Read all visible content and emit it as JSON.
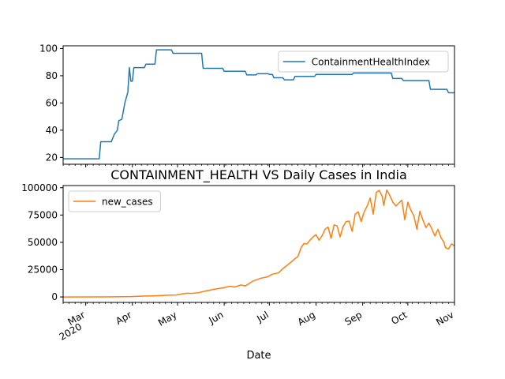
{
  "figure": {
    "xlabel": "Date",
    "x_tick_labels": [
      {
        "date": "2020-03-01",
        "label": "Mar",
        "sub": "2020"
      },
      {
        "date": "2020-04-01",
        "label": "Apr",
        "sub": ""
      },
      {
        "date": "2020-05-01",
        "label": "May",
        "sub": ""
      },
      {
        "date": "2020-06-01",
        "label": "Jun",
        "sub": ""
      },
      {
        "date": "2020-07-01",
        "label": "Jul",
        "sub": ""
      },
      {
        "date": "2020-08-01",
        "label": "Aug",
        "sub": ""
      },
      {
        "date": "2020-09-01",
        "label": "Sep",
        "sub": ""
      },
      {
        "date": "2020-10-01",
        "label": "Oct",
        "sub": ""
      },
      {
        "date": "2020-11-01",
        "label": "Nov",
        "sub": ""
      }
    ],
    "xlim": [
      "2020-02-15",
      "2020-11-01"
    ]
  },
  "chart_data": [
    {
      "type": "line",
      "title": "",
      "xlabel": "",
      "ylabel": "",
      "ylim": [
        15,
        102
      ],
      "yticks": [
        20,
        40,
        60,
        80,
        100
      ],
      "legend": "top-right",
      "series": [
        {
          "name": "ContainmentHealthIndex",
          "color": "#1f77b4",
          "points": [
            [
              "2020-02-15",
              19
            ],
            [
              "2020-03-10",
              19
            ],
            [
              "2020-03-11",
              31.5
            ],
            [
              "2020-03-18",
              31.5
            ],
            [
              "2020-03-20",
              37
            ],
            [
              "2020-03-22",
              40
            ],
            [
              "2020-03-23",
              47
            ],
            [
              "2020-03-25",
              48
            ],
            [
              "2020-03-27",
              60
            ],
            [
              "2020-03-29",
              68
            ],
            [
              "2020-03-30",
              86
            ],
            [
              "2020-03-31",
              76
            ],
            [
              "2020-04-01",
              76
            ],
            [
              "2020-04-02",
              86
            ],
            [
              "2020-04-09",
              86
            ],
            [
              "2020-04-10",
              88.5
            ],
            [
              "2020-04-16",
              88.5
            ],
            [
              "2020-04-17",
              99
            ],
            [
              "2020-04-27",
              99
            ],
            [
              "2020-04-28",
              96.5
            ],
            [
              "2020-05-17",
              96.5
            ],
            [
              "2020-05-18",
              85.5
            ],
            [
              "2020-05-31",
              85.5
            ],
            [
              "2020-06-01",
              83.3
            ],
            [
              "2020-06-15",
              83.3
            ],
            [
              "2020-06-16",
              80.6
            ],
            [
              "2020-06-22",
              80.6
            ],
            [
              "2020-06-23",
              81.5
            ],
            [
              "2020-06-30",
              81.5
            ],
            [
              "2020-07-01",
              81
            ],
            [
              "2020-07-03",
              81
            ],
            [
              "2020-07-04",
              78.5
            ],
            [
              "2020-07-10",
              78.5
            ],
            [
              "2020-07-11",
              77
            ],
            [
              "2020-07-17",
              77
            ],
            [
              "2020-07-18",
              79.5
            ],
            [
              "2020-07-31",
              79.5
            ],
            [
              "2020-08-01",
              81
            ],
            [
              "2020-08-25",
              81
            ],
            [
              "2020-08-26",
              82
            ],
            [
              "2020-09-20",
              82
            ],
            [
              "2020-09-21",
              78
            ],
            [
              "2020-09-27",
              78
            ],
            [
              "2020-09-28",
              76.5
            ],
            [
              "2020-10-15",
              76.5
            ],
            [
              "2020-10-16",
              70
            ],
            [
              "2020-10-27",
              70
            ],
            [
              "2020-10-28",
              67.5
            ],
            [
              "2020-11-01",
              67.5
            ]
          ]
        }
      ]
    },
    {
      "type": "line",
      "title": "CONTAINMENT_HEALTH VS Daily Cases in India",
      "xlabel": "Date",
      "ylabel": "",
      "ylim": [
        -5000,
        102000
      ],
      "yticks": [
        0,
        25000,
        50000,
        75000,
        100000
      ],
      "legend": "top-left",
      "series": [
        {
          "name": "new_cases",
          "color": "#ff7f0e",
          "points": [
            [
              "2020-02-15",
              0
            ],
            [
              "2020-03-15",
              50
            ],
            [
              "2020-03-31",
              300
            ],
            [
              "2020-04-05",
              600
            ],
            [
              "2020-04-10",
              850
            ],
            [
              "2020-04-15",
              1000
            ],
            [
              "2020-04-20",
              1300
            ],
            [
              "2020-04-25",
              1600
            ],
            [
              "2020-04-30",
              1800
            ],
            [
              "2020-05-03",
              2500
            ],
            [
              "2020-05-07",
              3400
            ],
            [
              "2020-05-10",
              3200
            ],
            [
              "2020-05-15",
              3900
            ],
            [
              "2020-05-20",
              5600
            ],
            [
              "2020-05-25",
              6900
            ],
            [
              "2020-05-31",
              8300
            ],
            [
              "2020-06-05",
              9800
            ],
            [
              "2020-06-08",
              9000
            ],
            [
              "2020-06-12",
              11000
            ],
            [
              "2020-06-15",
              10000
            ],
            [
              "2020-06-20",
              14500
            ],
            [
              "2020-06-25",
              17000
            ],
            [
              "2020-06-30",
              18500
            ],
            [
              "2020-07-03",
              20900
            ],
            [
              "2020-07-07",
              22000
            ],
            [
              "2020-07-10",
              26000
            ],
            [
              "2020-07-12",
              28000
            ],
            [
              "2020-07-16",
              32600
            ],
            [
              "2020-07-18",
              35000
            ],
            [
              "2020-07-20",
              37000
            ],
            [
              "2020-07-22",
              45000
            ],
            [
              "2020-07-24",
              49000
            ],
            [
              "2020-07-26",
              48500
            ],
            [
              "2020-07-28",
              52000
            ],
            [
              "2020-07-30",
              55000
            ],
            [
              "2020-08-01",
              57000
            ],
            [
              "2020-08-03",
              52000
            ],
            [
              "2020-08-05",
              56000
            ],
            [
              "2020-08-07",
              62000
            ],
            [
              "2020-08-09",
              64000
            ],
            [
              "2020-08-11",
              53600
            ],
            [
              "2020-08-13",
              66000
            ],
            [
              "2020-08-15",
              65000
            ],
            [
              "2020-08-17",
              55000
            ],
            [
              "2020-08-19",
              64500
            ],
            [
              "2020-08-21",
              69000
            ],
            [
              "2020-08-23",
              69500
            ],
            [
              "2020-08-25",
              60000
            ],
            [
              "2020-08-27",
              75800
            ],
            [
              "2020-08-29",
              78000
            ],
            [
              "2020-08-31",
              69000
            ],
            [
              "2020-09-02",
              78000
            ],
            [
              "2020-09-04",
              83300
            ],
            [
              "2020-09-06",
              90600
            ],
            [
              "2020-09-08",
              75800
            ],
            [
              "2020-09-10",
              95700
            ],
            [
              "2020-09-12",
              97600
            ],
            [
              "2020-09-14",
              92000
            ],
            [
              "2020-09-15",
              83800
            ],
            [
              "2020-09-17",
              97900
            ],
            [
              "2020-09-19",
              93000
            ],
            [
              "2020-09-21",
              86900
            ],
            [
              "2020-09-23",
              83300
            ],
            [
              "2020-09-25",
              86000
            ],
            [
              "2020-09-27",
              88600
            ],
            [
              "2020-09-29",
              70600
            ],
            [
              "2020-10-01",
              86800
            ],
            [
              "2020-10-03",
              79500
            ],
            [
              "2020-10-05",
              74400
            ],
            [
              "2020-10-07",
              62000
            ],
            [
              "2020-10-09",
              78500
            ],
            [
              "2020-10-11",
              70500
            ],
            [
              "2020-10-13",
              63500
            ],
            [
              "2020-10-15",
              67700
            ],
            [
              "2020-10-17",
              62200
            ],
            [
              "2020-10-19",
              55800
            ],
            [
              "2020-10-21",
              61900
            ],
            [
              "2020-10-23",
              54400
            ],
            [
              "2020-10-25",
              50000
            ],
            [
              "2020-10-26",
              45100
            ],
            [
              "2020-10-28",
              43900
            ],
            [
              "2020-10-30",
              48600
            ],
            [
              "2020-11-01",
              46900
            ]
          ]
        }
      ]
    }
  ]
}
